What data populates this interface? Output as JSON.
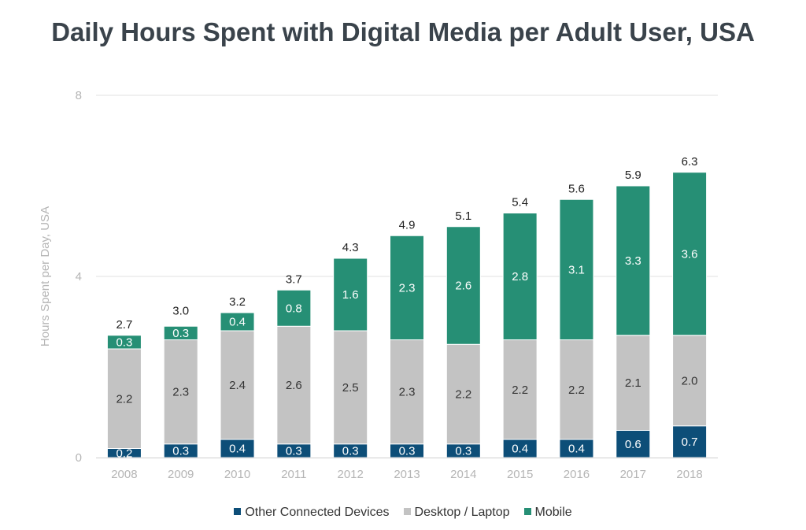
{
  "chart_data": {
    "type": "bar",
    "stacked": true,
    "title": "Daily Hours Spent with Digital Media per Adult User, USA",
    "xlabel": "",
    "ylabel": "Hours Spent per Day, USA",
    "ylim": [
      0,
      8
    ],
    "yticks": [
      0,
      4,
      8
    ],
    "grid": true,
    "legend_position": "bottom",
    "categories": [
      "2008",
      "2009",
      "2010",
      "2011",
      "2012",
      "2013",
      "2014",
      "2015",
      "2016",
      "2017",
      "2018"
    ],
    "series": [
      {
        "name": "Other Connected Devices",
        "color": "#0d4e78",
        "text_color": "#ffffff",
        "values": [
          0.2,
          0.3,
          0.4,
          0.3,
          0.3,
          0.3,
          0.3,
          0.4,
          0.4,
          0.6,
          0.7
        ]
      },
      {
        "name": "Desktop / Laptop",
        "color": "#c3c3c3",
        "text_color": "#333333",
        "values": [
          2.2,
          2.3,
          2.4,
          2.6,
          2.5,
          2.3,
          2.2,
          2.2,
          2.2,
          2.1,
          2.0
        ]
      },
      {
        "name": "Mobile",
        "color": "#268f75",
        "text_color": "#ffffff",
        "values": [
          0.3,
          0.3,
          0.4,
          0.8,
          1.6,
          2.3,
          2.6,
          2.8,
          3.1,
          3.3,
          3.6
        ]
      }
    ],
    "totals": [
      2.7,
      3.0,
      3.2,
      3.7,
      4.3,
      4.9,
      5.1,
      5.4,
      5.6,
      5.9,
      6.3
    ]
  }
}
